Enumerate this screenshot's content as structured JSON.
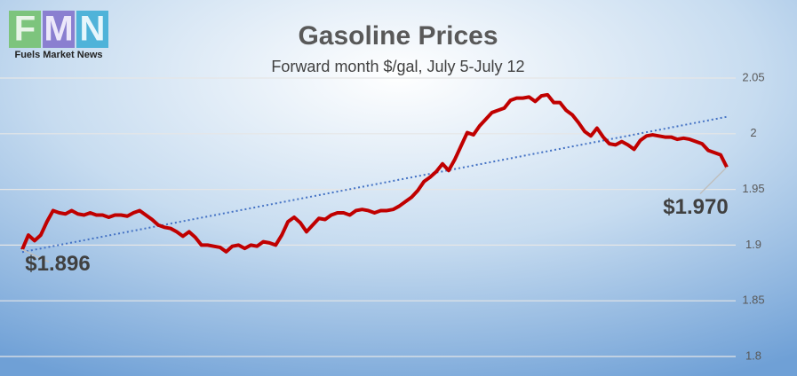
{
  "chart_data": {
    "type": "line",
    "title": "Gasoline Prices",
    "subtitle": "Forward month $/gal, July 5-July 12",
    "logo": {
      "letters": [
        "F",
        "M",
        "N"
      ],
      "name": "Fuels Market News"
    },
    "series": [
      {
        "name": "Gasoline",
        "color": "#c00000",
        "values": [
          1.896,
          1.909,
          1.904,
          1.909,
          1.921,
          1.931,
          1.929,
          1.928,
          1.931,
          1.928,
          1.927,
          1.929,
          1.927,
          1.927,
          1.925,
          1.927,
          1.927,
          1.926,
          1.929,
          1.931,
          1.927,
          1.923,
          1.918,
          1.916,
          1.915,
          1.912,
          1.908,
          1.912,
          1.907,
          1.9,
          1.9,
          1.899,
          1.898,
          1.894,
          1.899,
          1.9,
          1.897,
          1.9,
          1.899,
          1.903,
          1.902,
          1.9,
          1.909,
          1.921,
          1.925,
          1.92,
          1.912,
          1.918,
          1.924,
          1.923,
          1.927,
          1.929,
          1.929,
          1.927,
          1.931,
          1.932,
          1.931,
          1.929,
          1.931,
          1.931,
          1.932,
          1.935,
          1.939,
          1.943,
          1.949,
          1.957,
          1.961,
          1.966,
          1.973,
          1.967,
          1.977,
          1.989,
          2.001,
          1.999,
          2.007,
          2.013,
          2.019,
          2.021,
          2.023,
          2.03,
          2.032,
          2.032,
          2.033,
          2.029,
          2.034,
          2.035,
          2.028,
          2.028,
          2.021,
          2.017,
          2.01,
          2.002,
          1.998,
          2.005,
          1.997,
          1.991,
          1.99,
          1.993,
          1.99,
          1.986,
          1.994,
          1.998,
          1.999,
          1.998,
          1.997,
          1.997,
          1.995,
          1.996,
          1.995,
          1.993,
          1.991,
          1.985,
          1.983,
          1.981,
          1.97
        ],
        "value_labels": [
          "$1.896",
          null,
          null,
          null,
          null,
          null,
          null,
          null,
          null,
          null,
          null,
          null,
          null,
          null,
          null,
          null,
          null,
          null,
          null,
          null,
          null,
          null,
          null,
          null,
          null,
          null,
          null,
          null,
          null,
          null,
          null,
          null,
          null,
          null,
          null,
          null,
          null,
          null,
          null,
          null,
          null,
          null,
          null,
          null,
          null,
          null,
          null,
          null,
          null,
          null,
          null,
          null,
          null,
          null,
          null,
          null,
          null,
          null,
          null,
          null,
          null,
          null,
          null,
          null,
          null,
          null,
          null,
          null,
          null,
          null,
          null,
          null,
          null,
          null,
          null,
          null,
          null,
          null,
          null,
          null,
          null,
          null,
          null,
          null,
          null,
          null,
          null,
          null,
          null,
          null,
          null,
          null,
          null,
          null,
          null,
          null,
          null,
          null,
          null,
          null,
          null,
          null,
          null,
          null,
          null,
          null,
          null,
          null,
          null,
          null,
          null,
          null,
          null,
          null,
          "$1.970"
        ]
      }
    ],
    "trendline": {
      "color": "#4472c4",
      "style": "dotted"
    },
    "ylim": [
      1.8,
      2.05
    ],
    "yticks": [
      1.8,
      1.85,
      1.9,
      1.95,
      2,
      2.05
    ],
    "grid": true
  }
}
